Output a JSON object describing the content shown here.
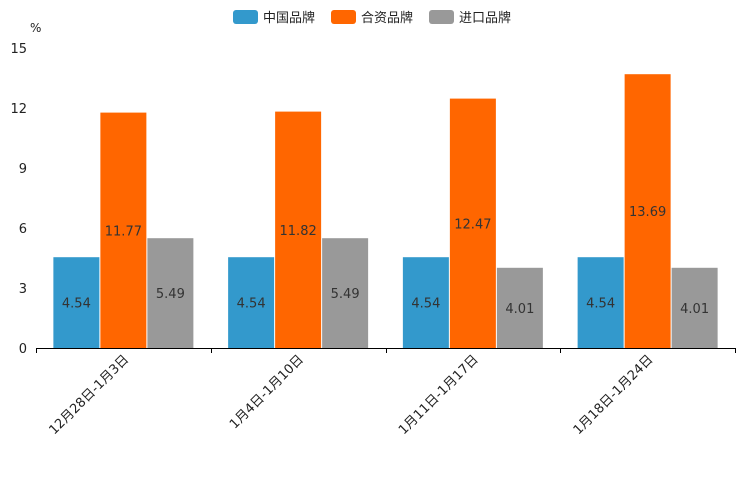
{
  "chart_data": {
    "type": "bar",
    "unit": "%",
    "categories": [
      "12月28日-1月3日",
      "1月4日-1月10日",
      "1月11日-1月17日",
      "1月18日-1月24日"
    ],
    "series": [
      {
        "name": "中国品牌",
        "color": "#3399cc",
        "values": [
          4.54,
          4.54,
          4.54,
          4.54
        ]
      },
      {
        "name": "合资品牌",
        "color": "#ff6600",
        "values": [
          11.77,
          11.82,
          12.47,
          13.69
        ]
      },
      {
        "name": "进口品牌",
        "color": "#999999",
        "values": [
          5.49,
          5.49,
          4.01,
          4.01
        ]
      }
    ],
    "ylim": [
      0,
      15
    ],
    "yticks": [
      0,
      3,
      6,
      9,
      12,
      15
    ],
    "legend_position": "top-center"
  }
}
